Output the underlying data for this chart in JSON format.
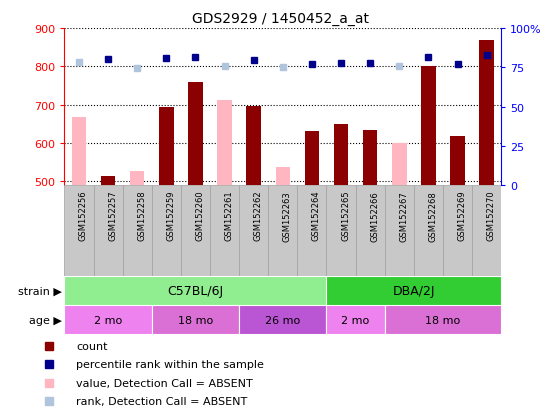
{
  "title": "GDS2929 / 1450452_a_at",
  "samples": [
    "GSM152256",
    "GSM152257",
    "GSM152258",
    "GSM152259",
    "GSM152260",
    "GSM152261",
    "GSM152262",
    "GSM152263",
    "GSM152264",
    "GSM152265",
    "GSM152266",
    "GSM152267",
    "GSM152268",
    "GSM152269",
    "GSM152270"
  ],
  "count_present": [
    null,
    513,
    null,
    693,
    758,
    null,
    697,
    null,
    632,
    651,
    633,
    null,
    800,
    619,
    869
  ],
  "count_absent": [
    667,
    null,
    527,
    null,
    null,
    712,
    null,
    537,
    null,
    null,
    null,
    600,
    null,
    null,
    null
  ],
  "rank_present": [
    null,
    820,
    null,
    822,
    825,
    null,
    816,
    null,
    806,
    810,
    810,
    null,
    824,
    806,
    830
  ],
  "rank_absent": [
    812,
    null,
    795,
    null,
    null,
    800,
    null,
    798,
    null,
    null,
    null,
    800,
    null,
    null,
    null
  ],
  "ylim_left": [
    490,
    900
  ],
  "yticks_left": [
    500,
    600,
    700,
    800,
    900
  ],
  "yticks_right_pct": [
    0,
    25,
    50,
    75,
    100
  ],
  "yticks_right_labels": [
    "0",
    "25",
    "50",
    "75",
    "100%"
  ],
  "color_count_present": "#8B0000",
  "color_count_absent": "#FFB6C1",
  "color_rank_present": "#00008B",
  "color_rank_absent": "#B0C4DE",
  "bar_width": 0.5,
  "marker_size": 5,
  "strain_c57_range": [
    0,
    9
  ],
  "strain_dba_range": [
    9,
    15
  ],
  "strain_c57_color": "#90EE90",
  "strain_dba_color": "#32CD32",
  "strain_c57_label": "C57BL/6J",
  "strain_dba_label": "DBA/2J",
  "age_groups": [
    {
      "label": "2 mo",
      "start": 0,
      "end": 3,
      "color": "#EE82EE"
    },
    {
      "label": "18 mo",
      "start": 3,
      "end": 6,
      "color": "#DA70D6"
    },
    {
      "label": "26 mo",
      "start": 6,
      "end": 9,
      "color": "#BA55D3"
    },
    {
      "label": "2 mo",
      "start": 9,
      "end": 11,
      "color": "#EE82EE"
    },
    {
      "label": "18 mo",
      "start": 11,
      "end": 15,
      "color": "#DA70D6"
    }
  ],
  "legend_colors": [
    "#8B0000",
    "#00008B",
    "#FFB6C1",
    "#B0C4DE"
  ],
  "legend_labels": [
    "count",
    "percentile rank within the sample",
    "value, Detection Call = ABSENT",
    "rank, Detection Call = ABSENT"
  ],
  "sample_box_color": "#C8C8C8",
  "sample_box_edgecolor": "#A0A0A0"
}
